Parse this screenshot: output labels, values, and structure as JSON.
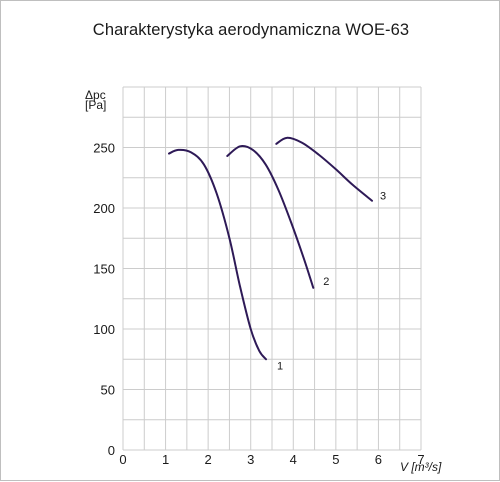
{
  "chart_data": {
    "type": "line",
    "title": "Charakterystyka aerodynamiczna WOE-63",
    "ylabel_top": "Δpc",
    "ylabel_unit": "[Pa]",
    "xlabel": "V [m³/s]",
    "xlim": [
      0,
      7
    ],
    "ylim": [
      0,
      300
    ],
    "x_ticks": [
      "0",
      "1",
      "2",
      "3",
      "4",
      "5",
      "6",
      "7"
    ],
    "y_ticks": [
      "0",
      "50",
      "100",
      "150",
      "200",
      "250"
    ],
    "grid": true,
    "line_color": "#2e1a57",
    "series": [
      {
        "name": "1",
        "x": [
          1.08,
          1.3,
          1.6,
          1.9,
          2.2,
          2.5,
          2.75,
          3.0,
          3.2,
          3.36
        ],
        "y": [
          245,
          248,
          246,
          236,
          212,
          175,
          135,
          100,
          82,
          75
        ]
      },
      {
        "name": "2",
        "x": [
          2.45,
          2.75,
          3.05,
          3.35,
          3.65,
          3.95,
          4.25,
          4.47
        ],
        "y": [
          243,
          251,
          248,
          236,
          215,
          188,
          158,
          134
        ]
      },
      {
        "name": "3",
        "x": [
          3.6,
          3.85,
          4.2,
          4.6,
          5.0,
          5.4,
          5.85
        ],
        "y": [
          253,
          258,
          254,
          244,
          232,
          219,
          206
        ]
      }
    ]
  }
}
